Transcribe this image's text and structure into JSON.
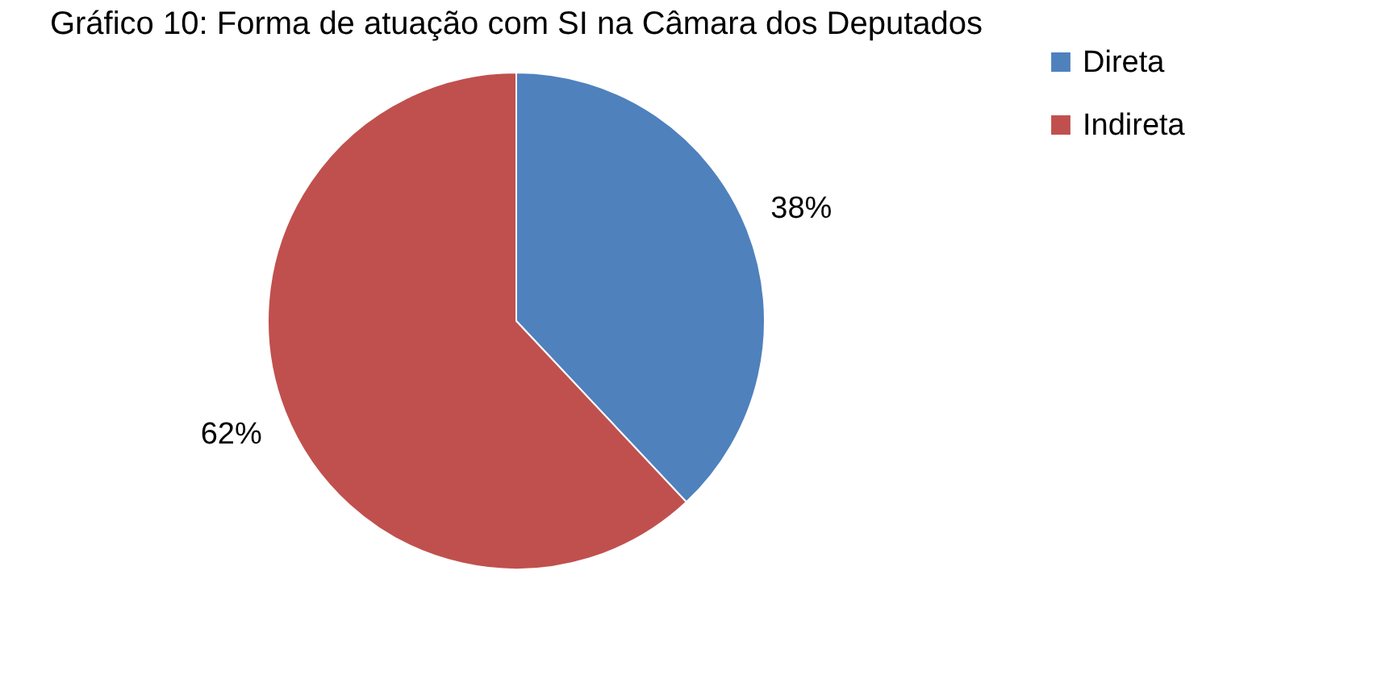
{
  "chart_data": {
    "type": "pie",
    "title": "Gráfico 10: Forma de atuação com SI na Câmara dos Deputados",
    "categories": [
      "Direta",
      "Indireta"
    ],
    "values": [
      38,
      62
    ],
    "colors": [
      "#4f81bd",
      "#c0504d"
    ],
    "value_labels": [
      "38%",
      "62%"
    ],
    "legend": "right"
  }
}
